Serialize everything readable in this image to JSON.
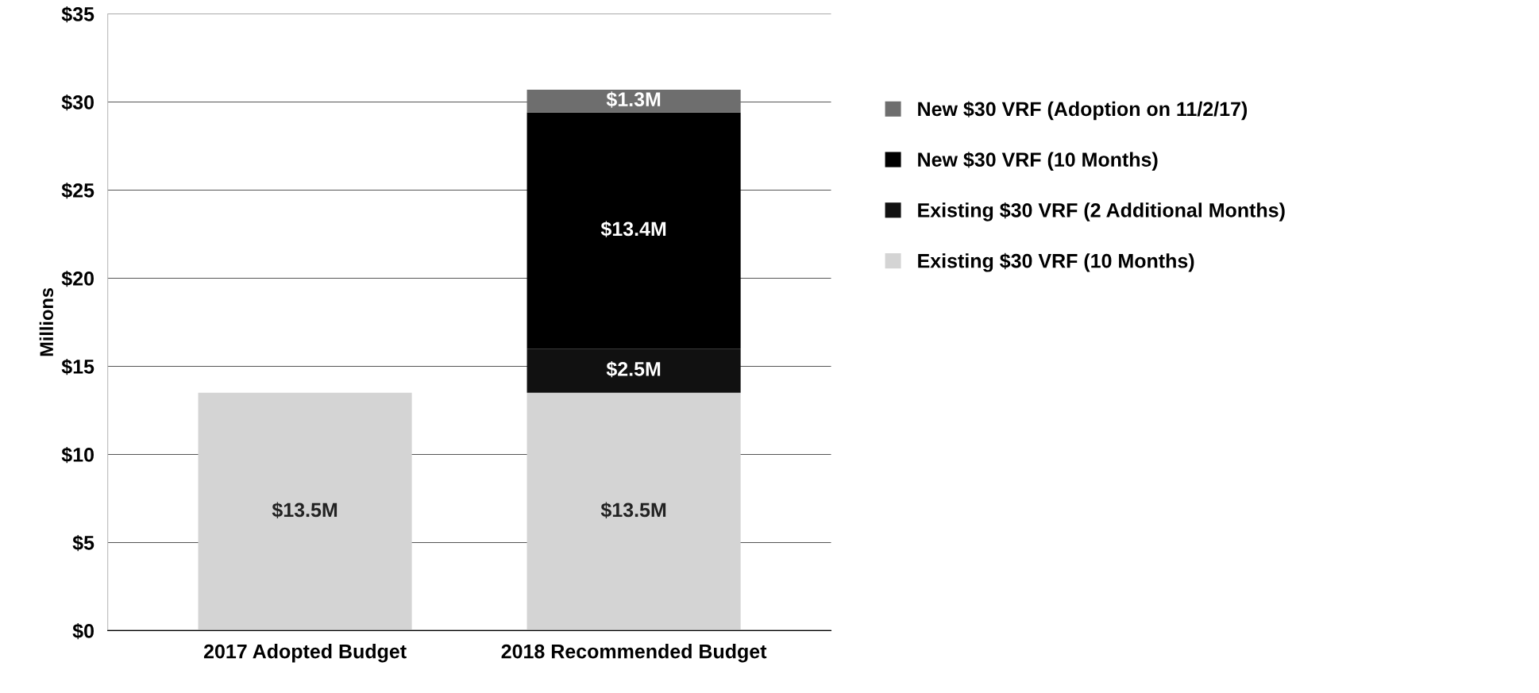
{
  "chart_data": {
    "type": "bar",
    "stacked": true,
    "ylabel": "Millions",
    "categories": [
      "2017 Adopted Budget",
      "2018 Recommended Budget"
    ],
    "series": [
      {
        "name": "Existing $30 VRF (10 Months)",
        "color": "#d4d4d4",
        "values": [
          13.5,
          13.5
        ],
        "value_labels": [
          "$13.5M",
          "$13.5M"
        ]
      },
      {
        "name": "Existing $30 VRF (2 Additional Months)",
        "color": "#111111",
        "values": [
          null,
          2.5
        ],
        "value_labels": [
          null,
          "$2.5M"
        ]
      },
      {
        "name": "New $30 VRF (10 Months)",
        "color": "#000000",
        "values": [
          null,
          13.4
        ],
        "value_labels": [
          null,
          "$13.4M"
        ]
      },
      {
        "name": "New $30 VRF (Adoption on 11/2/17)",
        "color": "#6e6e6e",
        "values": [
          null,
          1.3
        ],
        "value_labels": [
          null,
          "$1.3M"
        ]
      }
    ],
    "ylim": [
      0,
      35
    ],
    "yticks": [
      {
        "value": 0,
        "label": "$0"
      },
      {
        "value": 5,
        "label": "$5"
      },
      {
        "value": 10,
        "label": "$10"
      },
      {
        "value": 15,
        "label": "$15"
      },
      {
        "value": 20,
        "label": "$20"
      },
      {
        "value": 25,
        "label": "$25"
      },
      {
        "value": 30,
        "label": "$30"
      },
      {
        "value": 35,
        "label": "$35"
      }
    ],
    "grid": "y",
    "legend": "right"
  }
}
